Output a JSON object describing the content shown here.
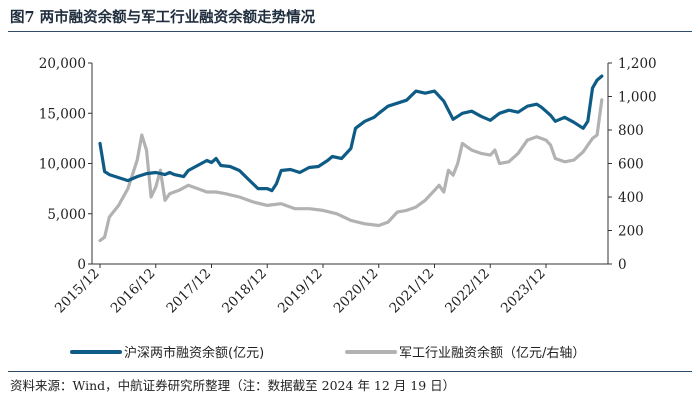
{
  "figure": {
    "title": "图7  两市融资余额与军工行业融资余额走势情况",
    "source": "资料来源：Wind，中航证券研究所整理（注：数据截至 2024 年 12 月 19 日）"
  },
  "chart_data": {
    "type": "line",
    "x_tick_labels": [
      "2015/12",
      "2016/12",
      "2017/12",
      "2018/12",
      "2019/12",
      "2020/12",
      "2021/12",
      "2022/12",
      "2023/12"
    ],
    "x_range": [
      "2015-12",
      "2024-12"
    ],
    "y_left": {
      "ticks": [
        "0",
        "5,000",
        "10,000",
        "15,000",
        "20,000"
      ],
      "range": [
        0,
        20000
      ]
    },
    "y_right": {
      "ticks": [
        "0",
        "200",
        "400",
        "600",
        "800",
        "1,000",
        "1,200"
      ],
      "range": [
        0,
        1200
      ]
    },
    "legend": {
      "placement": "bottom"
    },
    "colors": {
      "series_left": "#0e5c86",
      "series_right": "#b2b2b2",
      "axis": "#333333"
    },
    "series": [
      {
        "name": "沪深两市融资余额(亿元)",
        "axis": "left",
        "points": [
          [
            "2015-12",
            12000
          ],
          [
            "2016-01",
            9200
          ],
          [
            "2016-02",
            8900
          ],
          [
            "2016-04",
            8600
          ],
          [
            "2016-06",
            8300
          ],
          [
            "2016-08",
            8700
          ],
          [
            "2016-10",
            9000
          ],
          [
            "2016-12",
            9100
          ],
          [
            "2017-02",
            8900
          ],
          [
            "2017-03",
            9100
          ],
          [
            "2017-04",
            8900
          ],
          [
            "2017-06",
            8700
          ],
          [
            "2017-07",
            9300
          ],
          [
            "2017-09",
            9800
          ],
          [
            "2017-11",
            10300
          ],
          [
            "2017-12",
            10100
          ],
          [
            "2018-01",
            10500
          ],
          [
            "2018-02",
            9800
          ],
          [
            "2018-04",
            9700
          ],
          [
            "2018-06",
            9300
          ],
          [
            "2018-08",
            8400
          ],
          [
            "2018-10",
            7500
          ],
          [
            "2018-12",
            7500
          ],
          [
            "2019-01",
            7300
          ],
          [
            "2019-02",
            8000
          ],
          [
            "2019-03",
            9300
          ],
          [
            "2019-05",
            9400
          ],
          [
            "2019-07",
            9100
          ],
          [
            "2019-09",
            9600
          ],
          [
            "2019-11",
            9700
          ],
          [
            "2020-01",
            10300
          ],
          [
            "2020-02",
            10700
          ],
          [
            "2020-04",
            10500
          ],
          [
            "2020-06",
            11500
          ],
          [
            "2020-07",
            13500
          ],
          [
            "2020-09",
            14200
          ],
          [
            "2020-11",
            14600
          ],
          [
            "2020-12",
            15000
          ],
          [
            "2021-02",
            15700
          ],
          [
            "2021-04",
            16000
          ],
          [
            "2021-06",
            16300
          ],
          [
            "2021-08",
            17200
          ],
          [
            "2021-10",
            17000
          ],
          [
            "2021-12",
            17200
          ],
          [
            "2022-02",
            16200
          ],
          [
            "2022-04",
            14400
          ],
          [
            "2022-06",
            15000
          ],
          [
            "2022-08",
            15200
          ],
          [
            "2022-10",
            14700
          ],
          [
            "2022-12",
            14300
          ],
          [
            "2023-02",
            15000
          ],
          [
            "2023-04",
            15300
          ],
          [
            "2023-06",
            15100
          ],
          [
            "2023-08",
            15700
          ],
          [
            "2023-10",
            15900
          ],
          [
            "2023-11",
            15600
          ],
          [
            "2024-01",
            14800
          ],
          [
            "2024-02",
            14200
          ],
          [
            "2024-04",
            14600
          ],
          [
            "2024-06",
            14100
          ],
          [
            "2024-08",
            13500
          ],
          [
            "2024-09",
            14200
          ],
          [
            "2024-10",
            17500
          ],
          [
            "2024-11",
            18300
          ],
          [
            "2024-12",
            18700
          ]
        ]
      },
      {
        "name": "军工行业融资余额（亿元/右轴）",
        "axis": "right",
        "points": [
          [
            "2015-12",
            140
          ],
          [
            "2016-01",
            160
          ],
          [
            "2016-02",
            280
          ],
          [
            "2016-04",
            350
          ],
          [
            "2016-06",
            450
          ],
          [
            "2016-08",
            620
          ],
          [
            "2016-09",
            770
          ],
          [
            "2016-10",
            680
          ],
          [
            "2016-11",
            400
          ],
          [
            "2016-12",
            460
          ],
          [
            "2017-01",
            560
          ],
          [
            "2017-02",
            380
          ],
          [
            "2017-03",
            420
          ],
          [
            "2017-05",
            440
          ],
          [
            "2017-07",
            470
          ],
          [
            "2017-09",
            450
          ],
          [
            "2017-11",
            430
          ],
          [
            "2018-01",
            430
          ],
          [
            "2018-03",
            420
          ],
          [
            "2018-06",
            400
          ],
          [
            "2018-09",
            370
          ],
          [
            "2018-12",
            350
          ],
          [
            "2019-03",
            360
          ],
          [
            "2019-06",
            330
          ],
          [
            "2019-09",
            330
          ],
          [
            "2019-12",
            320
          ],
          [
            "2020-03",
            300
          ],
          [
            "2020-06",
            260
          ],
          [
            "2020-09",
            240
          ],
          [
            "2020-12",
            230
          ],
          [
            "2021-02",
            250
          ],
          [
            "2021-04",
            310
          ],
          [
            "2021-06",
            320
          ],
          [
            "2021-08",
            340
          ],
          [
            "2021-10",
            380
          ],
          [
            "2021-12",
            440
          ],
          [
            "2022-01",
            470
          ],
          [
            "2022-02",
            430
          ],
          [
            "2022-03",
            560
          ],
          [
            "2022-04",
            530
          ],
          [
            "2022-05",
            600
          ],
          [
            "2022-06",
            720
          ],
          [
            "2022-07",
            700
          ],
          [
            "2022-08",
            680
          ],
          [
            "2022-10",
            660
          ],
          [
            "2022-12",
            650
          ],
          [
            "2023-01",
            680
          ],
          [
            "2023-02",
            600
          ],
          [
            "2023-04",
            610
          ],
          [
            "2023-06",
            660
          ],
          [
            "2023-08",
            740
          ],
          [
            "2023-10",
            760
          ],
          [
            "2023-12",
            740
          ],
          [
            "2024-01",
            710
          ],
          [
            "2024-02",
            630
          ],
          [
            "2024-04",
            610
          ],
          [
            "2024-06",
            620
          ],
          [
            "2024-08",
            670
          ],
          [
            "2024-09",
            710
          ],
          [
            "2024-10",
            750
          ],
          [
            "2024-11",
            770
          ],
          [
            "2024-12",
            980
          ]
        ]
      }
    ]
  }
}
